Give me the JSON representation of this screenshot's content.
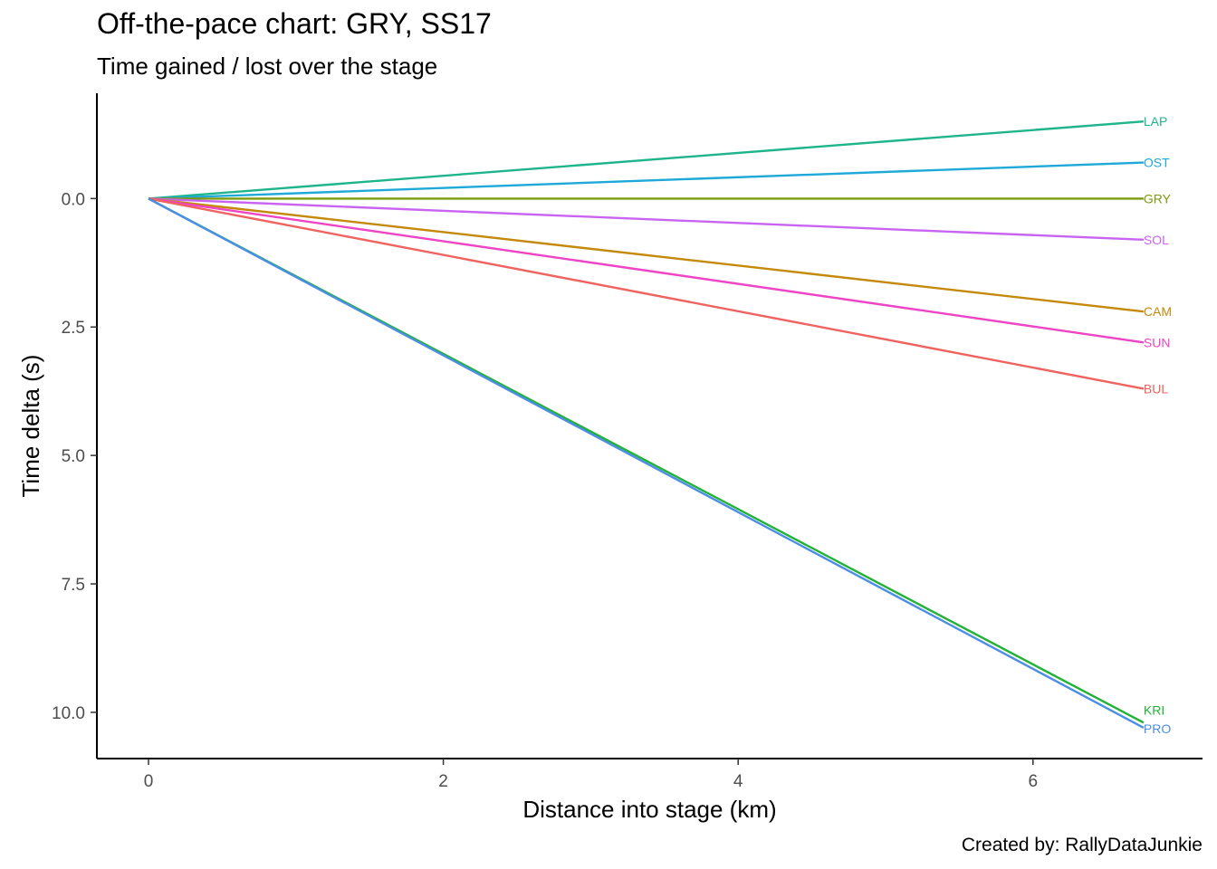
{
  "chart_data": {
    "type": "line",
    "title": "Off-the-pace chart: GRY, SS17",
    "subtitle": "Time gained / lost over the stage",
    "caption": "Created by: RallyDataJunkie",
    "xlabel": "Distance into stage (km)",
    "ylabel": "Time delta (s)",
    "xlim": [
      -0.35,
      7.15
    ],
    "ylim": [
      -2.05,
      10.9
    ],
    "y_reversed": true,
    "x_ticks": [
      0,
      2,
      4,
      6
    ],
    "x_tick_labels": [
      "0",
      "2",
      "4",
      "6"
    ],
    "y_ticks": [
      0,
      2.5,
      5,
      7.5,
      10
    ],
    "y_tick_labels": [
      "0.0",
      "2.5",
      "5.0",
      "7.5",
      "10.0"
    ],
    "grid": false,
    "legend": "none (direct end-of-line labels)",
    "series": [
      {
        "name": "LAP",
        "color": "#1fb58c",
        "x": [
          0,
          6.75
        ],
        "y": [
          0,
          -1.5
        ]
      },
      {
        "name": "OST",
        "color": "#1ea9d8",
        "x": [
          0,
          6.75
        ],
        "y": [
          0,
          -0.7
        ]
      },
      {
        "name": "GRY",
        "color": "#7c9a0e",
        "x": [
          0,
          6.75
        ],
        "y": [
          0,
          0
        ]
      },
      {
        "name": "SOL",
        "color": "#c964f2",
        "x": [
          0,
          6.75
        ],
        "y": [
          0,
          0.8
        ]
      },
      {
        "name": "CAM",
        "color": "#c5890a",
        "x": [
          0,
          6.75
        ],
        "y": [
          0,
          2.2
        ]
      },
      {
        "name": "SUN",
        "color": "#ee44c6",
        "x": [
          0,
          6.75
        ],
        "y": [
          0,
          2.8
        ]
      },
      {
        "name": "BUL",
        "color": "#ef6360",
        "x": [
          0,
          6.75
        ],
        "y": [
          0,
          3.7
        ]
      },
      {
        "name": "KRI",
        "color": "#22b236",
        "x": [
          0,
          6.75
        ],
        "y": [
          0,
          10.2
        ]
      },
      {
        "name": "PRO",
        "color": "#4a8ee6",
        "x": [
          0,
          6.75
        ],
        "y": [
          0,
          10.3
        ]
      }
    ]
  }
}
